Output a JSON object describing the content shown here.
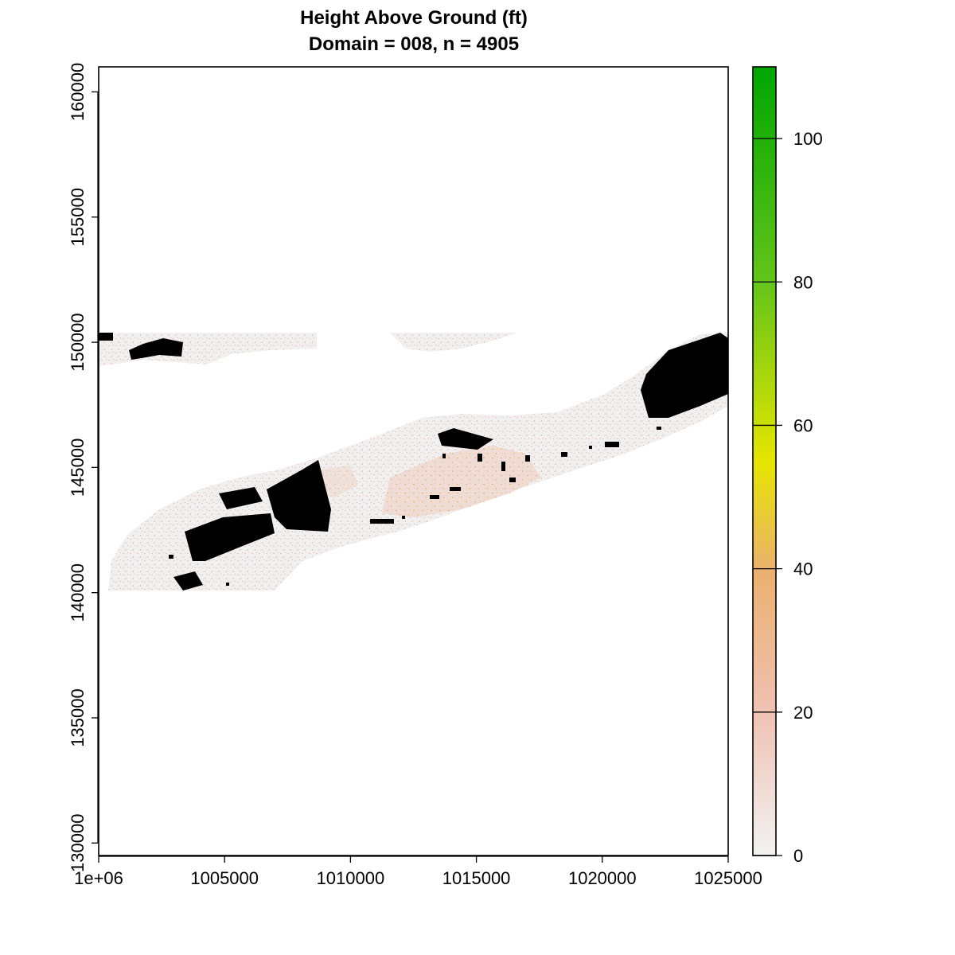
{
  "chart_data": {
    "type": "heatmap",
    "title": "Height Above Ground (ft)",
    "subtitle": "Domain = 008, n = 4905",
    "xlabel": "",
    "ylabel": "",
    "xlim": [
      1000000,
      1025000
    ],
    "ylim": [
      129500,
      161000
    ],
    "x_ticks": [
      {
        "value": 1000000,
        "label": "1e+06"
      },
      {
        "value": 1005000,
        "label": "1005000"
      },
      {
        "value": 1010000,
        "label": "1010000"
      },
      {
        "value": 1015000,
        "label": "1015000"
      },
      {
        "value": 1020000,
        "label": "1020000"
      },
      {
        "value": 1025000,
        "label": "1025000"
      }
    ],
    "y_ticks": [
      {
        "value": 130000,
        "label": "130000"
      },
      {
        "value": 135000,
        "label": "135000"
      },
      {
        "value": 140000,
        "label": "140000"
      },
      {
        "value": 145000,
        "label": "145000"
      },
      {
        "value": 150000,
        "label": "150000"
      },
      {
        "value": 155000,
        "label": "155000"
      },
      {
        "value": 160000,
        "label": "160000"
      }
    ],
    "colorbar": {
      "min": 0,
      "max": 110,
      "ticks": [
        0,
        20,
        40,
        60,
        80,
        100
      ],
      "colors": [
        "#f2f2f2",
        "#efc2b3",
        "#ebb06f",
        "#e6e600",
        "#62c41a",
        "#00a600"
      ],
      "stops": [
        0,
        0.18,
        0.36,
        0.5,
        0.73,
        1
      ]
    },
    "buildings_color": "#000000",
    "background_land_color": "#f0f0f0",
    "grid": false
  }
}
